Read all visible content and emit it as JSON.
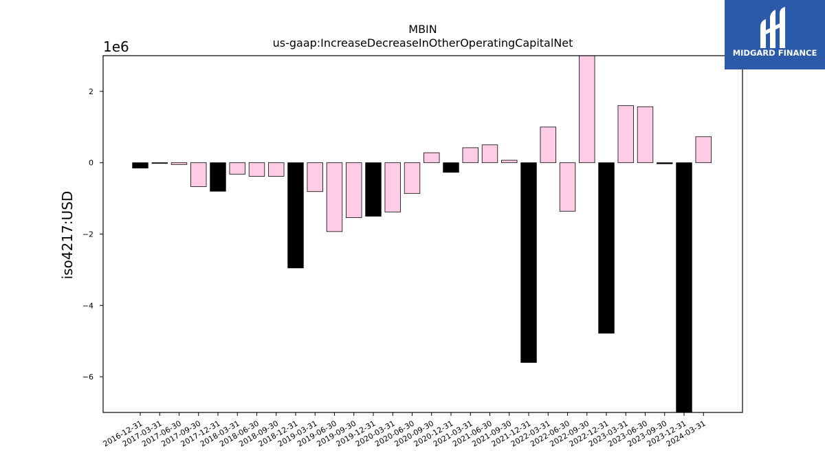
{
  "chart_data": {
    "type": "bar",
    "title": "MBIN",
    "subtitle": "us-gaap:IncreaseDecreaseInOtherOperatingCapitalNet",
    "ylabel": "iso4217:USD",
    "xlabel": "",
    "y_offset_label": "1e6",
    "y_scale": 1000000,
    "ylim": [
      -7000000,
      3000000
    ],
    "yticks": [
      -6000000,
      -4000000,
      -2000000,
      0,
      2000000
    ],
    "ytick_labels": [
      "−6",
      "−4",
      "−2",
      "0",
      "2"
    ],
    "grid": false,
    "colors": {
      "positive_fill": "#ffcce6",
      "negative_fill": "#000000",
      "edge": "#000000"
    },
    "categories": [
      "2016-12-31",
      "2017-03-31",
      "2017-06-30",
      "2017-09-30",
      "2017-12-31",
      "2018-03-31",
      "2018-06-30",
      "2018-09-30",
      "2018-12-31",
      "2019-03-31",
      "2019-06-30",
      "2019-09-30",
      "2019-12-31",
      "2020-03-31",
      "2020-06-30",
      "2020-09-30",
      "2020-12-31",
      "2021-03-31",
      "2021-06-30",
      "2021-09-30",
      "2021-12-31",
      "2022-03-31",
      "2022-06-30",
      "2022-09-30",
      "2022-12-31",
      "2023-03-31",
      "2023-06-30",
      "2023-09-30",
      "2023-12-31",
      "2024-03-31"
    ],
    "values": [
      -150000,
      -20000,
      -50000,
      -670000,
      -800000,
      -320000,
      -380000,
      -380000,
      -2950000,
      -810000,
      -1930000,
      -1540000,
      -1500000,
      -1380000,
      -860000,
      280000,
      -270000,
      420000,
      500000,
      70000,
      -5600000,
      1000000,
      -1360000,
      3000000,
      -4780000,
      1600000,
      1570000,
      -30000,
      -7000000,
      730000
    ],
    "bar_colors": [
      "#000000",
      "#000000",
      "#ffcce6",
      "#ffcce6",
      "#000000",
      "#ffcce6",
      "#ffcce6",
      "#ffcce6",
      "#000000",
      "#ffcce6",
      "#ffcce6",
      "#ffcce6",
      "#000000",
      "#ffcce6",
      "#ffcce6",
      "#ffcce6",
      "#000000",
      "#ffcce6",
      "#ffcce6",
      "#ffcce6",
      "#000000",
      "#ffcce6",
      "#ffcce6",
      "#ffcce6",
      "#000000",
      "#ffcce6",
      "#ffcce6",
      "#000000",
      "#000000",
      "#ffcce6"
    ]
  },
  "logo": {
    "text": "MIDGARD FINANCE",
    "background": "#2b5aa8"
  }
}
